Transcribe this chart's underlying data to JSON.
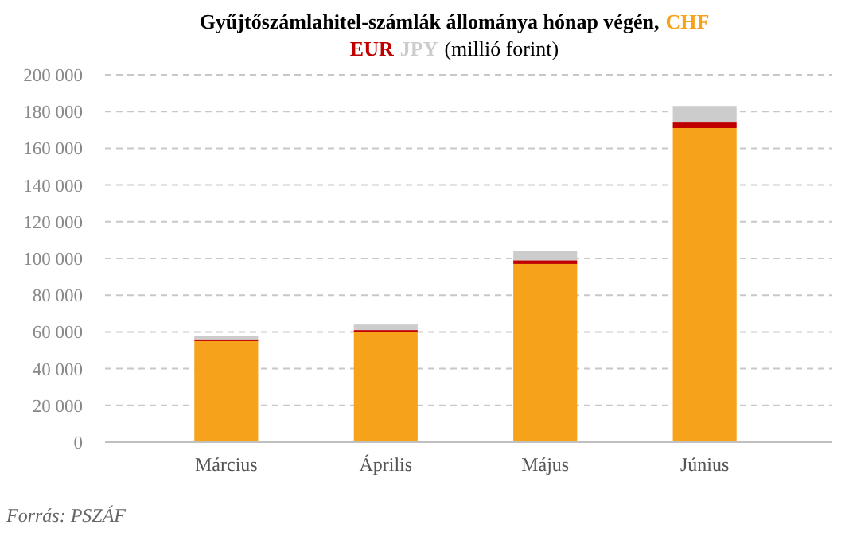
{
  "chart_data": {
    "type": "bar",
    "stacked": true,
    "title": "Gyűjtőszámlahitel-számlák állománya hónap végén,",
    "subtitle": "(millió forint)",
    "categories": [
      "Március",
      "Április",
      "Május",
      "Június"
    ],
    "series": [
      {
        "name": "CHF",
        "color": "#f7a21b",
        "values": [
          55000,
          60000,
          97000,
          171000
        ]
      },
      {
        "name": "EUR",
        "color": "#c00000",
        "values": [
          1000,
          1000,
          2000,
          3000
        ]
      },
      {
        "name": "JPY",
        "color": "#cccccc",
        "values": [
          2000,
          3000,
          5000,
          9000
        ]
      }
    ],
    "ylim": [
      0,
      200000
    ],
    "yticks": [
      {
        "value": 0,
        "label": "0"
      },
      {
        "value": 20000,
        "label": "20 000"
      },
      {
        "value": 40000,
        "label": "40 000"
      },
      {
        "value": 60000,
        "label": "60 000"
      },
      {
        "value": 80000,
        "label": "80 000"
      },
      {
        "value": 100000,
        "label": "100 000"
      },
      {
        "value": 120000,
        "label": "120 000"
      },
      {
        "value": 140000,
        "label": "140 000"
      },
      {
        "value": 160000,
        "label": "160 000"
      },
      {
        "value": 180000,
        "label": "180 000"
      },
      {
        "value": 200000,
        "label": "200 000"
      }
    ],
    "grid": "y",
    "legend": "top",
    "annotations": [
      "Forrás: PSZÁF"
    ]
  }
}
